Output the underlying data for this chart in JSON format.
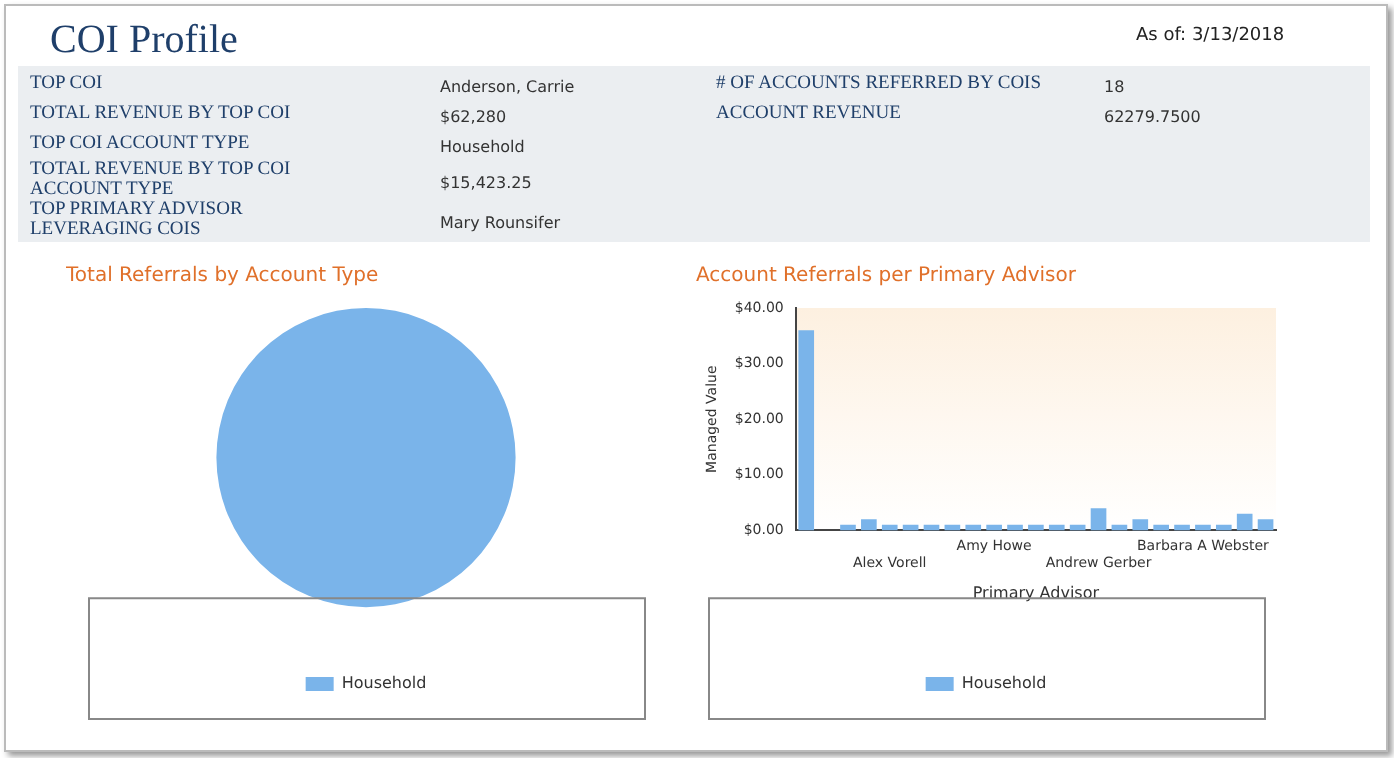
{
  "chart_data": [
    {
      "type": "other",
      "title": "COI Profile",
      "annotations": [
        "As of: 3/13/2018",
        "TOP COI",
        "Anderson, Carrie",
        "TOTAL REVENUE BY TOP COI",
        "$62,280",
        "TOP COI ACCOUNT TYPE",
        "Household",
        "TOTAL REVENUE BY TOP COI ACCOUNT TYPE",
        "$15,423.25",
        "TOP PRIMARY ADVISOR LEVERAGING COIS",
        "Mary Rounsifer",
        "# OF ACCOUNTS REFERRED BY COIS",
        "18",
        "ACCOUNT REVENUE",
        "62279.7500"
      ]
    },
    {
      "type": "pie",
      "title": "Total Referrals by Account Type",
      "categories": [
        "Household"
      ],
      "values": [
        100
      ],
      "colors": [
        "#7ab4ea"
      ],
      "legend": "bottom"
    },
    {
      "type": "bar",
      "title": "Account Referrals per Primary Advisor",
      "xlabel": "Primary Advisor",
      "ylabel": "Managed Value",
      "categories": [
        null,
        null,
        null,
        null,
        "Alex Vorell",
        null,
        null,
        null,
        null,
        "Amy Howe",
        null,
        null,
        null,
        null,
        "Andrew Gerber",
        null,
        null,
        null,
        null,
        "Barbara A Webster",
        null,
        null,
        null
      ],
      "series": [
        {
          "name": "Household",
          "color": "#7ab4ea",
          "values": [
            36,
            0,
            1,
            2,
            1,
            1,
            1,
            1,
            1,
            1,
            1,
            1,
            1,
            1,
            4,
            1,
            2,
            1,
            1,
            1,
            1,
            3,
            2
          ]
        }
      ],
      "ylim": [
        0,
        40
      ],
      "yticks": [
        {
          "value": 0,
          "label": "$0.00"
        },
        {
          "value": 10,
          "label": "$10.00"
        },
        {
          "value": 20,
          "label": "$20.00"
        },
        {
          "value": 30,
          "label": "$30.00"
        },
        {
          "value": 40,
          "label": "$40.00"
        }
      ],
      "grid": false,
      "legend": "bottom"
    }
  ]
}
